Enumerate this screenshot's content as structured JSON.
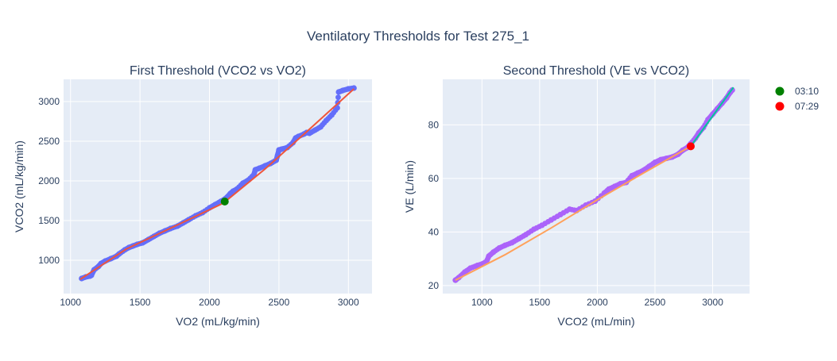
{
  "title": "Ventilatory Thresholds for Test 275_1",
  "legend": [
    {
      "label": "03:10",
      "color": "#008000"
    },
    {
      "label": "07:29",
      "color": "#ff0000"
    }
  ],
  "chart_data": [
    {
      "type": "scatter",
      "title": "First Threshold (VCO2 vs VO2)",
      "xlabel": "VO2 (mL/kg/min)",
      "ylabel": "VCO2 (mL/kg/min)",
      "xlim": [
        950,
        3170
      ],
      "ylim": [
        580,
        3280
      ],
      "xticks": [
        1000,
        1500,
        2000,
        2500,
        3000
      ],
      "yticks": [
        1000,
        1500,
        2000,
        2500,
        3000
      ],
      "series": [
        {
          "kind": "scatter",
          "color": "#636efa",
          "x": [
            1080,
            1110,
            1140,
            1150,
            1170,
            1200,
            1220,
            1250,
            1290,
            1330,
            1350,
            1390,
            1420,
            1450,
            1480,
            1520,
            1560,
            1600,
            1640,
            1680,
            1720,
            1770,
            1810,
            1850,
            1900,
            1950,
            2000,
            2040,
            2080,
            2110,
            2130,
            2150,
            2170,
            2200,
            2240,
            2280,
            2320,
            2330,
            2360,
            2400,
            2440,
            2480,
            2490,
            2500,
            2520,
            2560,
            2600,
            2620,
            2640,
            2680,
            2700,
            2720,
            2760,
            2800,
            2840,
            2880,
            2920,
            2930,
            2960,
            3000,
            3040
          ],
          "y": [
            770,
            790,
            800,
            810,
            880,
            920,
            960,
            990,
            1020,
            1050,
            1080,
            1130,
            1160,
            1180,
            1200,
            1220,
            1260,
            1300,
            1340,
            1370,
            1400,
            1430,
            1470,
            1510,
            1560,
            1600,
            1660,
            1700,
            1740,
            1770,
            1800,
            1840,
            1870,
            1900,
            1970,
            2010,
            2080,
            2140,
            2160,
            2190,
            2220,
            2260,
            2320,
            2390,
            2400,
            2420,
            2480,
            2540,
            2560,
            2590,
            2610,
            2600,
            2640,
            2680,
            2760,
            2830,
            2920,
            3120,
            3140,
            3160,
            3170
          ]
        },
        {
          "kind": "line",
          "color": "#ef553b",
          "x": [
            1070,
            1400,
            1800,
            2100,
            2400,
            2700,
            3040
          ],
          "y": [
            760,
            1140,
            1470,
            1720,
            2150,
            2620,
            3160
          ]
        }
      ],
      "marker": {
        "x": 2110,
        "y": 1740,
        "color": "#008000",
        "label": "03:10"
      }
    },
    {
      "type": "scatter",
      "title": "Second Threshold (VE vs VCO2)",
      "xlabel": "VCO2 (mL/min)",
      "ylabel": "VE (L/min)",
      "xlim": [
        660,
        3320
      ],
      "ylim": [
        17,
        97
      ],
      "xticks": [
        1000,
        1500,
        2000,
        2500,
        3000
      ],
      "yticks": [
        20,
        40,
        60,
        80
      ],
      "series": [
        {
          "kind": "scatter",
          "color": "#ab63fa",
          "x": [
            770,
            800,
            850,
            900,
            960,
            1000,
            1040,
            1060,
            1100,
            1150,
            1200,
            1260,
            1320,
            1380,
            1450,
            1520,
            1600,
            1680,
            1760,
            1820,
            1900,
            1980,
            2060,
            2100,
            2150,
            2200,
            2250,
            2300,
            2350,
            2400,
            2450,
            2500,
            2550,
            2600,
            2650,
            2700,
            2740,
            2780,
            2810,
            2850,
            2880,
            2920,
            2960,
            3000,
            3040,
            3080,
            3120,
            3150,
            3170
          ],
          "y": [
            22,
            23,
            25,
            26.5,
            27.5,
            28,
            29,
            31,
            32.5,
            34,
            35,
            36,
            37.5,
            39,
            41,
            42.5,
            44.5,
            46.5,
            48.5,
            48,
            50,
            51.5,
            54.5,
            56,
            57,
            58,
            58.5,
            61,
            62,
            63,
            64.5,
            66,
            67,
            67.5,
            68,
            69,
            70.5,
            71.5,
            73,
            75,
            77,
            79,
            82,
            84,
            86,
            88,
            90,
            92,
            93
          ]
        },
        {
          "kind": "line",
          "color": "#ffa15a",
          "x": [
            770,
            1200,
            1600,
            2000,
            2400,
            2810
          ],
          "y": [
            22,
            31.5,
            41.5,
            52,
            62,
            72
          ]
        },
        {
          "kind": "line",
          "color": "#00cc96",
          "x": [
            2810,
            3180
          ],
          "y": [
            72,
            94
          ]
        }
      ],
      "marker": {
        "x": 2810,
        "y": 72,
        "color": "#ff0000",
        "label": "07:29"
      }
    }
  ]
}
